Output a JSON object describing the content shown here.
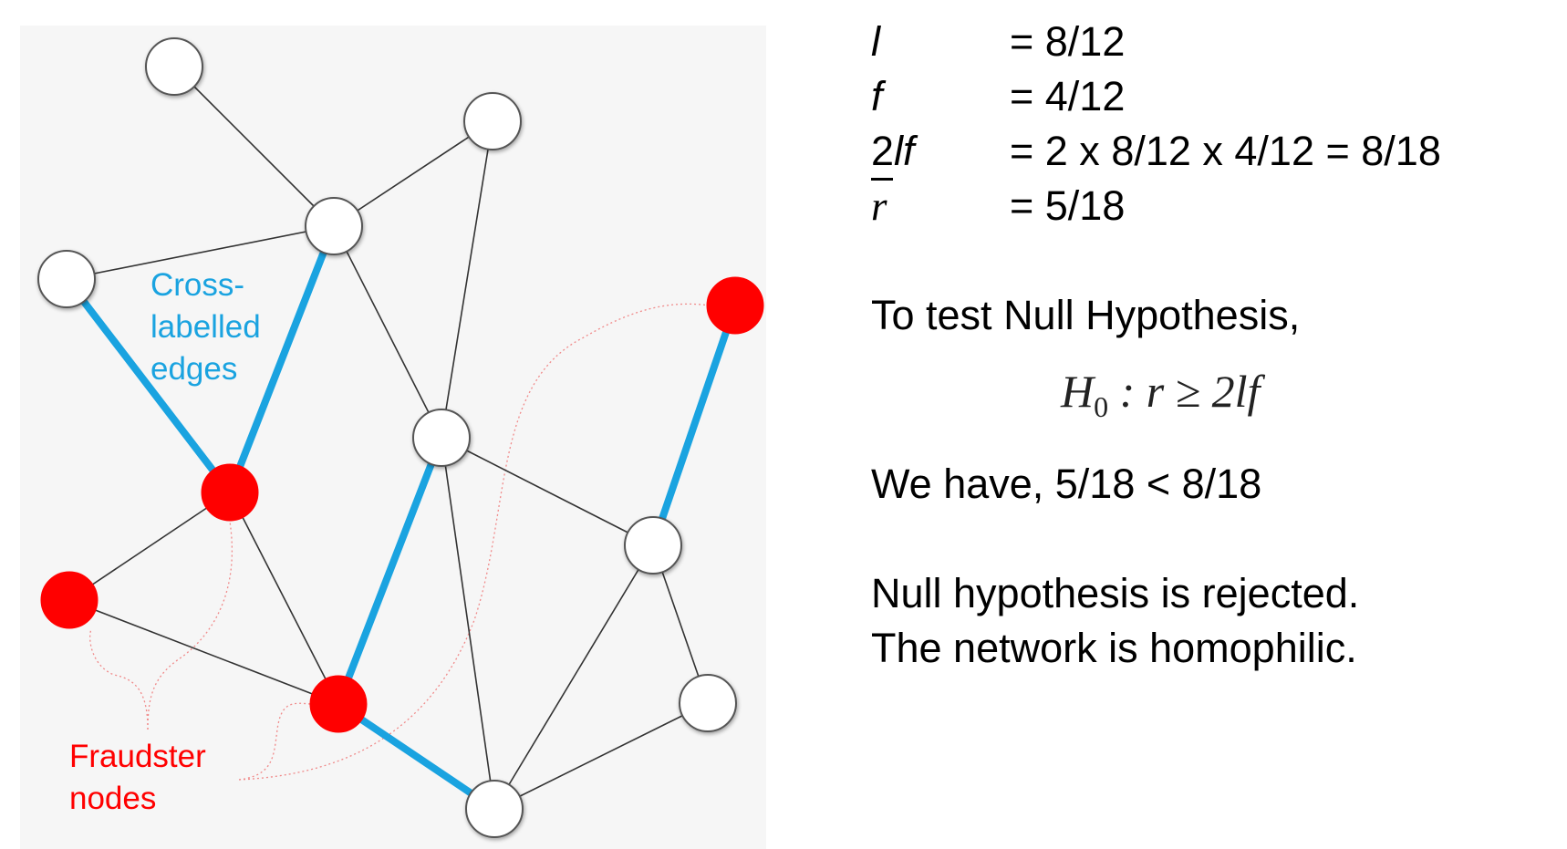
{
  "diagram": {
    "labels": {
      "cross_labelled": "Cross-\nlabelled\nedges",
      "fraudster": "Fraudster\nnodes"
    },
    "colors": {
      "fraud_node": "#ff0000",
      "normal_node": "#ffffff",
      "cross_edge": "#1aa3e0",
      "edge": "#333333"
    },
    "nodes": [
      {
        "id": "n1",
        "type": "normal"
      },
      {
        "id": "n2",
        "type": "normal"
      },
      {
        "id": "n3",
        "type": "normal"
      },
      {
        "id": "n4",
        "type": "normal"
      },
      {
        "id": "n5",
        "type": "fraud"
      },
      {
        "id": "n6",
        "type": "fraud"
      },
      {
        "id": "n7",
        "type": "normal"
      },
      {
        "id": "n8",
        "type": "fraud"
      },
      {
        "id": "n9",
        "type": "normal"
      },
      {
        "id": "n10",
        "type": "normal"
      },
      {
        "id": "n11",
        "type": "fraud"
      },
      {
        "id": "n12",
        "type": "normal"
      }
    ],
    "edges": [
      {
        "from": "n1",
        "to": "n3",
        "cross": false
      },
      {
        "from": "n2",
        "to": "n3",
        "cross": false
      },
      {
        "from": "n2",
        "to": "n7",
        "cross": false
      },
      {
        "from": "n3",
        "to": "n4",
        "cross": false
      },
      {
        "from": "n3",
        "to": "n5",
        "cross": true
      },
      {
        "from": "n3",
        "to": "n7",
        "cross": false
      },
      {
        "from": "n4",
        "to": "n5",
        "cross": true
      },
      {
        "from": "n5",
        "to": "n6",
        "cross": false
      },
      {
        "from": "n5",
        "to": "n8",
        "cross": false
      },
      {
        "from": "n6",
        "to": "n8",
        "cross": false
      },
      {
        "from": "n7",
        "to": "n8",
        "cross": true
      },
      {
        "from": "n7",
        "to": "n10",
        "cross": false
      },
      {
        "from": "n7",
        "to": "n12",
        "cross": false
      },
      {
        "from": "n8",
        "to": "n12",
        "cross": true
      },
      {
        "from": "n11",
        "to": "n10",
        "cross": true
      },
      {
        "from": "n10",
        "to": "n9",
        "cross": false
      },
      {
        "from": "n10",
        "to": "n12",
        "cross": false
      },
      {
        "from": "n9",
        "to": "n12",
        "cross": false
      }
    ]
  },
  "stats": {
    "l_symbol": "l",
    "l_value": "= 8/12",
    "f_symbol": "f",
    "f_value": "= 4/12",
    "lf_prefix": "2",
    "lf_symbol": "lf",
    "lf_value": "= 2 x 8/12 x 4/12 = 8/18",
    "r_symbol": "r",
    "r_value": "= 5/18"
  },
  "hypothesis": {
    "intro": "To test Null Hypothesis,",
    "formula_H": "H",
    "formula_sub": "0",
    "formula_rest": " : r ≥ 2lf",
    "comparison": "We have, 5/18 < 8/18",
    "conclusion_1": "Null hypothesis is rejected.",
    "conclusion_2": "The network is homophilic."
  }
}
